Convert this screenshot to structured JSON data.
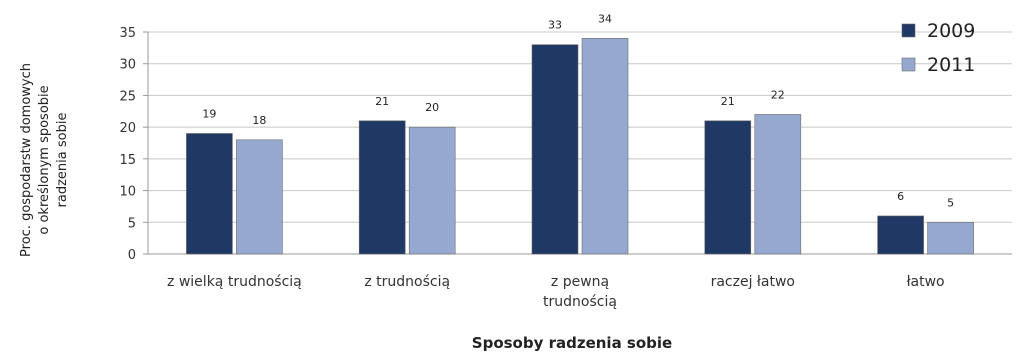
{
  "chart_data": {
    "type": "bar",
    "categories": [
      [
        "z wielką trudnością"
      ],
      [
        "z trudnością"
      ],
      [
        "z pewną",
        "trudnością"
      ],
      [
        "raczej łatwo"
      ],
      [
        "łatwo"
      ]
    ],
    "series": [
      {
        "name": "2009",
        "values": [
          19,
          21,
          33,
          21,
          6
        ],
        "color": "#1f3864"
      },
      {
        "name": "2011",
        "values": [
          18,
          20,
          34,
          22,
          5
        ],
        "color": "#95a9d0"
      }
    ],
    "ylabel": [
      "Proc. gospodarstw domowych",
      "o określonym sposobie",
      "radzenia sobie"
    ],
    "xlabel": "Sposoby radzenia sobie",
    "ylim": [
      0,
      35
    ],
    "yticks": [
      0,
      5,
      10,
      15,
      20,
      25,
      30,
      35
    ],
    "grid": true,
    "legend": "top-right"
  }
}
